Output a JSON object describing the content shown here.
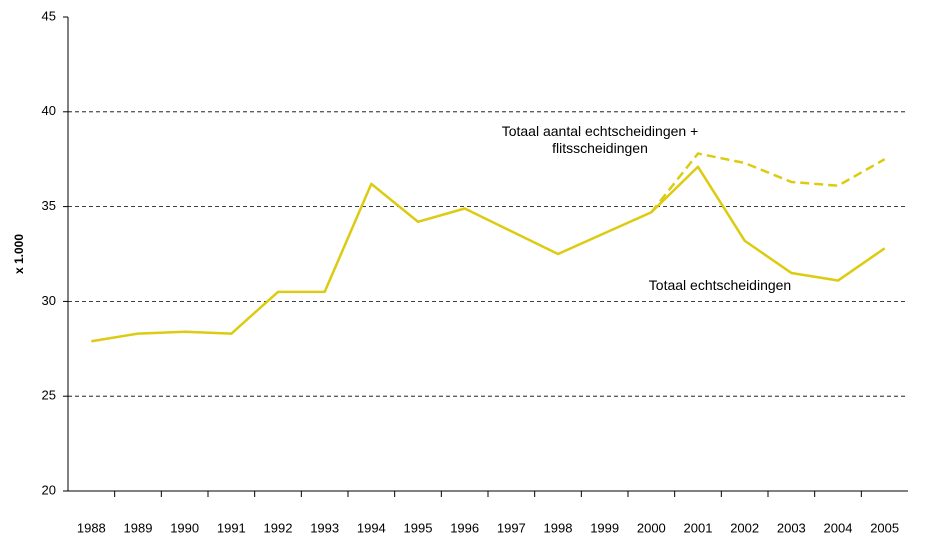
{
  "chart_data": {
    "type": "line",
    "y_label": "x 1.000",
    "categories": [
      "1988",
      "1989",
      "1990",
      "1991",
      "1992",
      "1993",
      "1994",
      "1995",
      "1996",
      "1997",
      "1998",
      "1999",
      "2000",
      "2001",
      "2002",
      "2003",
      "2004",
      "2005"
    ],
    "series": [
      {
        "name": "Totaal echtscheidingen",
        "color": "#dccb10",
        "dash": false,
        "values": [
          27.9,
          28.3,
          28.4,
          28.3,
          30.5,
          30.5,
          36.2,
          34.2,
          34.9,
          33.7,
          32.5,
          33.6,
          34.7,
          37.1,
          33.2,
          31.5,
          31.1,
          32.8
        ]
      },
      {
        "name": "Totaal aantal echtscheidingen + flitsscheidingen",
        "color": "#dccb10",
        "dash": true,
        "values": [
          null,
          null,
          null,
          null,
          null,
          null,
          null,
          null,
          null,
          null,
          null,
          null,
          34.7,
          37.8,
          37.3,
          36.3,
          36.1,
          37.5
        ]
      }
    ],
    "ylim": [
      20,
      45
    ],
    "yticks": [
      20,
      25,
      30,
      35,
      40,
      45
    ],
    "grid": true
  }
}
